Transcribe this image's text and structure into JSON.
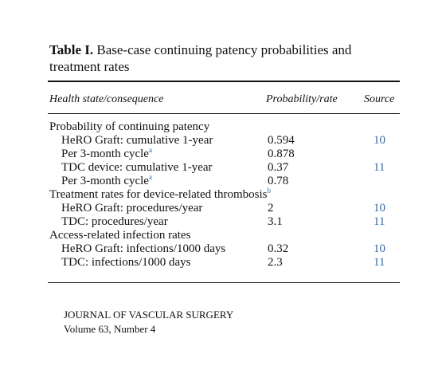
{
  "table": {
    "label": "Table I.",
    "title": "Base-case continuing patency probabilities and treatment rates",
    "columns": [
      "Health state/consequence",
      "Probability/rate",
      "Source"
    ],
    "sections": [
      {
        "title": "Probability of continuing patency",
        "rows": [
          {
            "label": "HeRO Graft: cumulative 1-year",
            "value": "0.594",
            "source": "10"
          },
          {
            "label": "Per 3-month cycle",
            "note": "a",
            "value": "0.878"
          },
          {
            "label": "TDC device: cumulative 1-year",
            "value": "0.37",
            "source": "11"
          },
          {
            "label": "Per 3-month cycle",
            "note": "a",
            "value": "0.78"
          }
        ]
      },
      {
        "title": "Treatment rates for device-related thrombosis",
        "note": "b",
        "rows": [
          {
            "label": "HeRO Graft: procedures/year",
            "value": "2",
            "source": "10"
          },
          {
            "label": "TDC: procedures/year",
            "value": "3.1",
            "source": "11"
          }
        ]
      },
      {
        "title": "Access-related infection rates",
        "rows": [
          {
            "label": "HeRO Graft: infections/1000 days",
            "value": "0.32",
            "source": "10"
          },
          {
            "label": "TDC: infections/1000 days",
            "value": "2.3",
            "source": "11"
          }
        ]
      }
    ]
  },
  "footer": {
    "journal": "JOURNAL OF VASCULAR SURGERY",
    "volume": "Volume 63, Number 4"
  }
}
